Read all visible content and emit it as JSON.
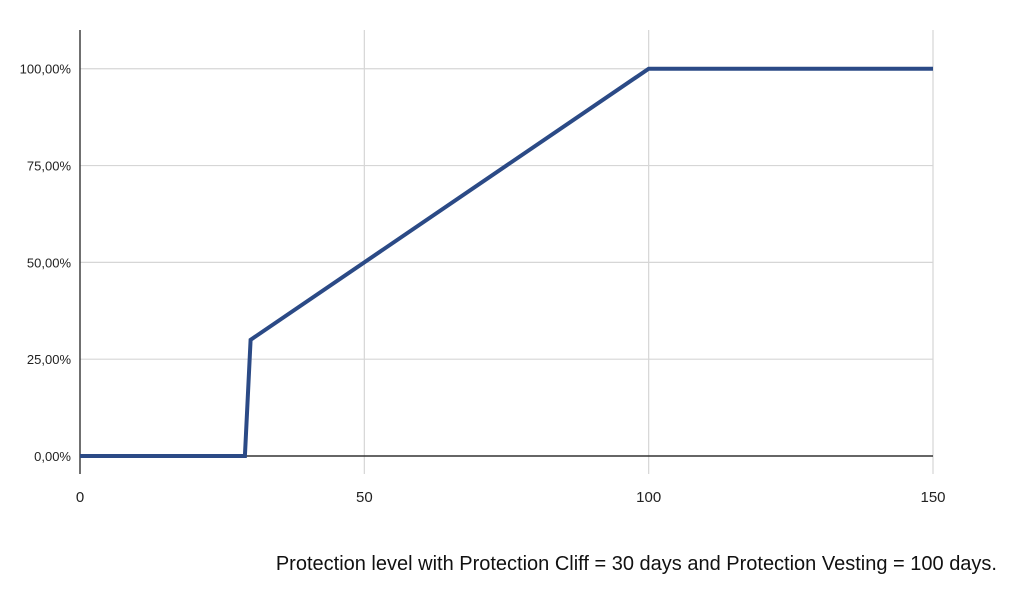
{
  "caption": "Protection level with Protection Cliff = 30 days and Protection Vesting = 100 days.",
  "colors": {
    "line": "#2b4a86",
    "grid": "#d6d6d6",
    "axis": "#333333",
    "tick_text": "#222222"
  },
  "chart_data": {
    "type": "line",
    "title": "",
    "xlabel": "",
    "ylabel": "",
    "xlim": [
      0,
      150
    ],
    "ylim": [
      0,
      1.1
    ],
    "x_ticks": [
      0,
      50,
      100,
      150
    ],
    "x_tick_labels": [
      "0",
      "50",
      "100",
      "150"
    ],
    "y_ticks": [
      0,
      0.25,
      0.5,
      0.75,
      1.0
    ],
    "y_tick_labels": [
      "0,00%",
      "25,00%",
      "50,00%",
      "75,00%",
      "100,00%"
    ],
    "grid": true,
    "legend": "none",
    "series": [
      {
        "x": [
          0,
          29,
          30,
          100,
          150
        ],
        "y": [
          0,
          0,
          0.3,
          1.0,
          1.0
        ]
      }
    ]
  }
}
